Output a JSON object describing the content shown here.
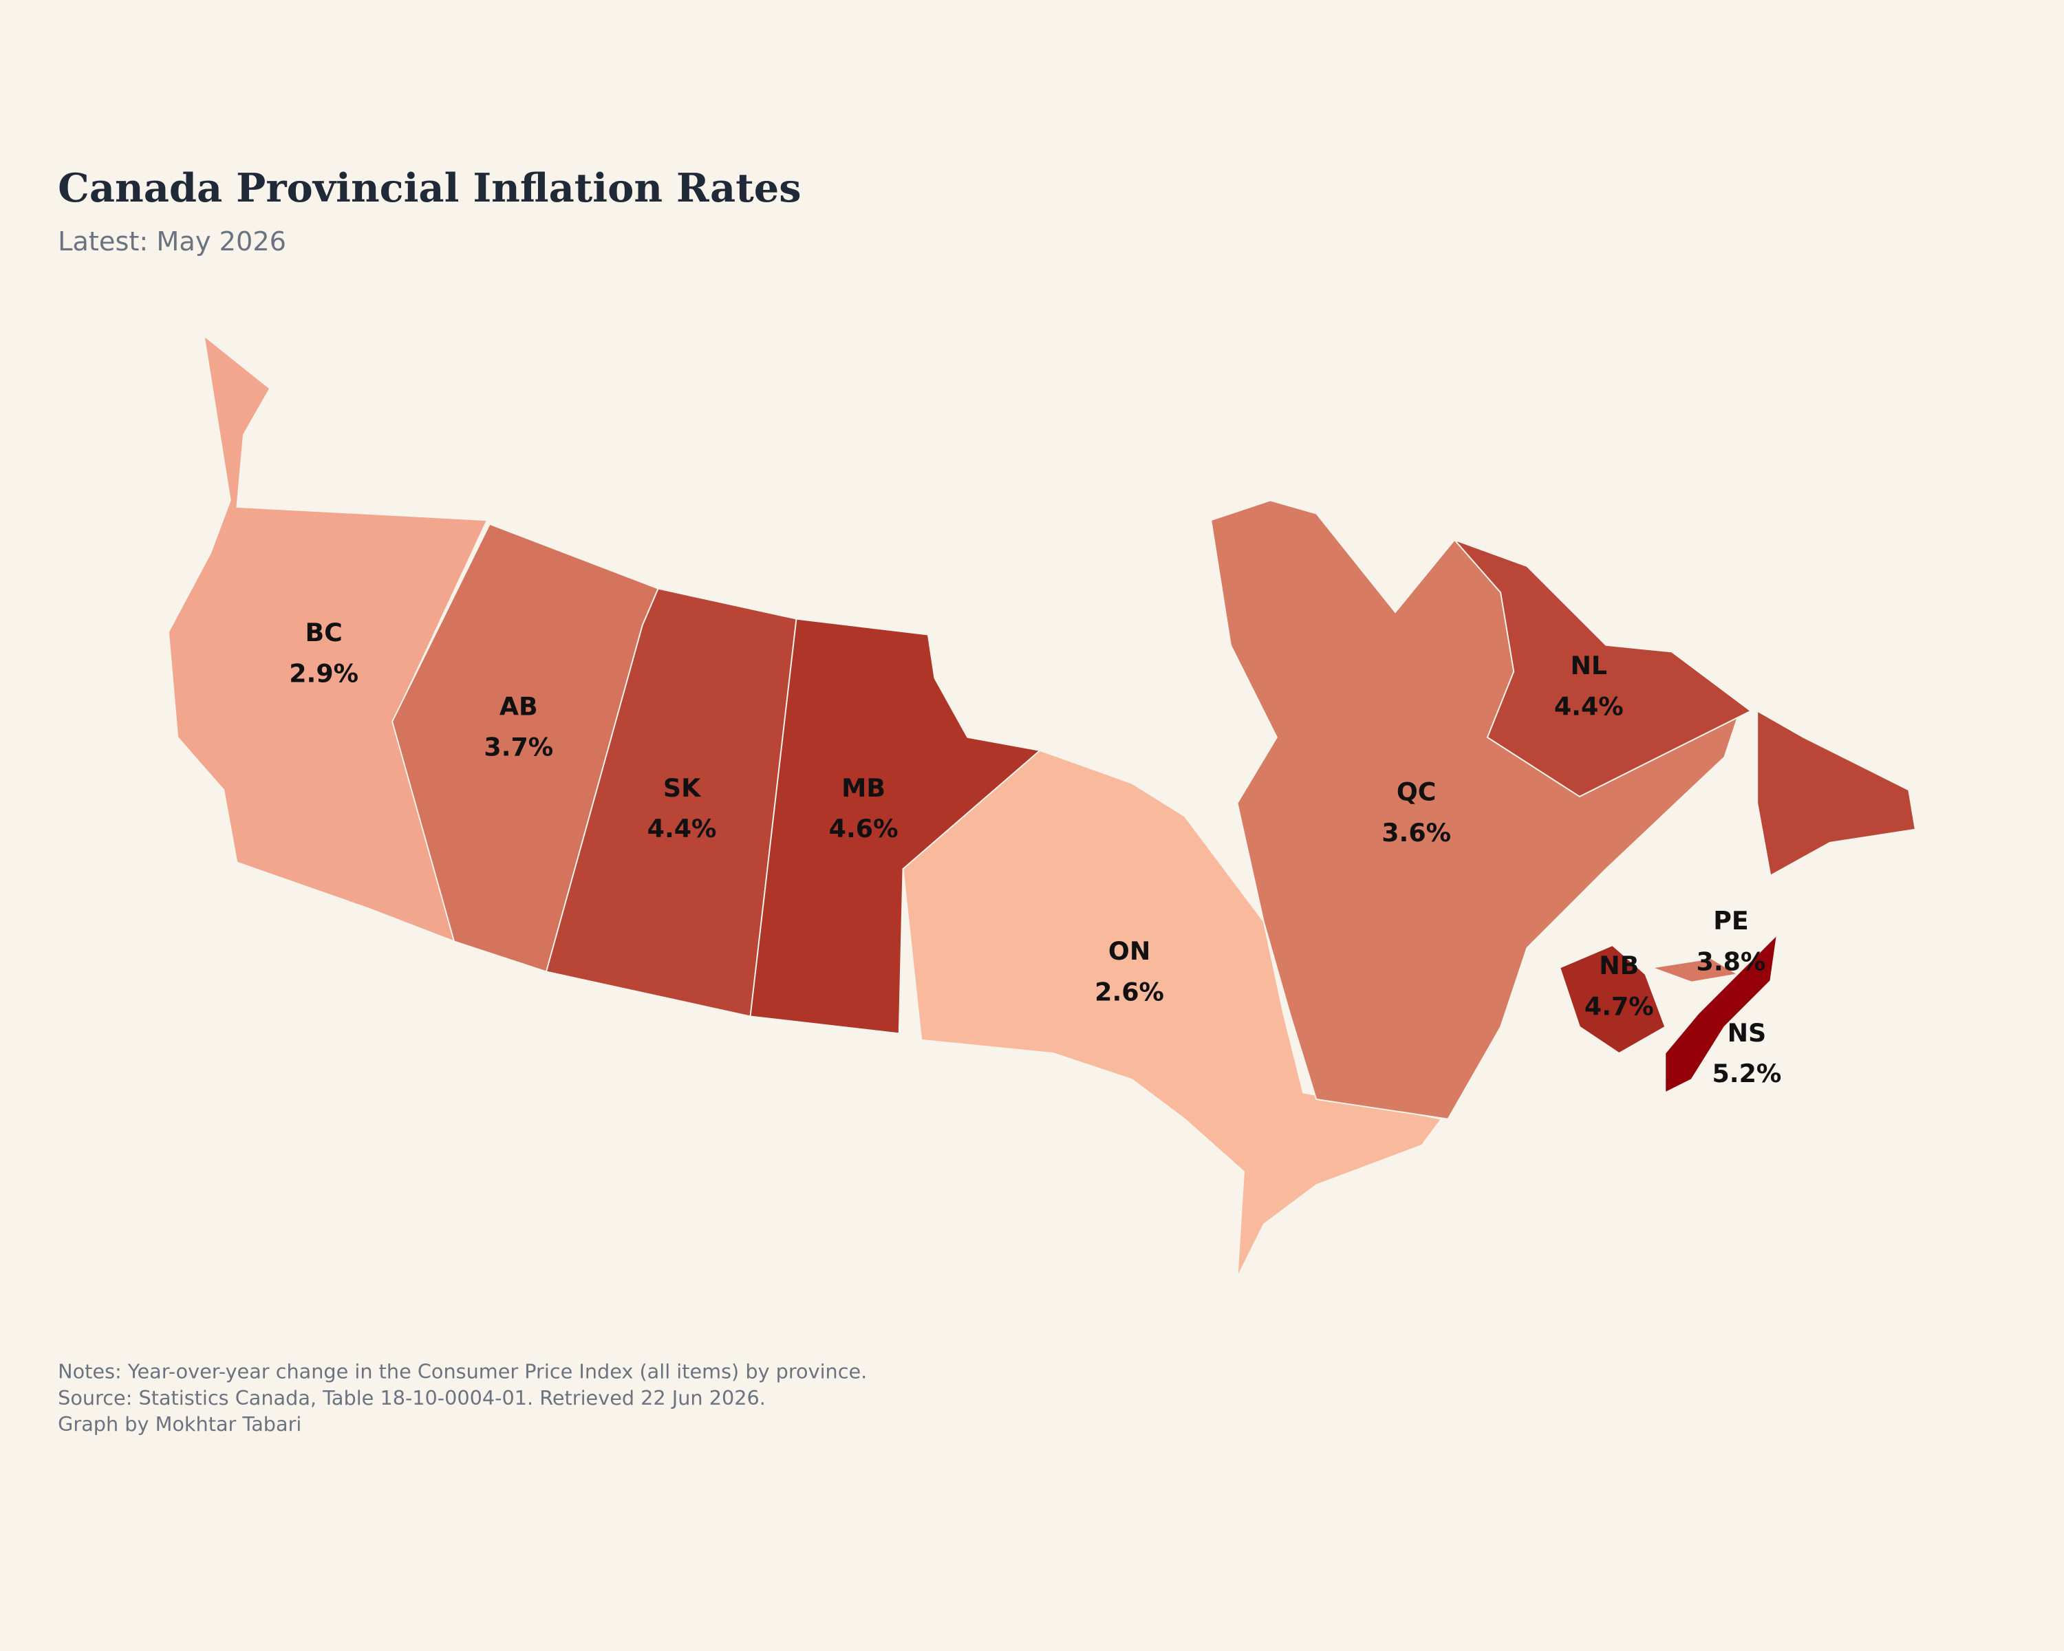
{
  "chart_data": {
    "type": "choropleth",
    "title": "Canada Provincial Inflation Rates",
    "subtitle": "Latest: May 2026",
    "categories": [
      "BC",
      "AB",
      "SK",
      "MB",
      "ON",
      "QC",
      "NL",
      "NB",
      "PE",
      "NS"
    ],
    "values": [
      2.9,
      3.7,
      4.4,
      4.6,
      2.6,
      3.6,
      4.4,
      4.7,
      3.8,
      5.2
    ],
    "value_labels": [
      "2.9%",
      "3.7%",
      "4.4%",
      "4.6%",
      "2.6%",
      "3.6%",
      "4.4%",
      "4.7%",
      "3.8%",
      "5.2%"
    ],
    "colors": [
      "#f1a68d",
      "#d4745d",
      "#b94536",
      "#ae3528",
      "#f9b99d",
      "#d87b63",
      "#b94636",
      "#a82b22",
      "#d67862",
      "#950008"
    ],
    "notes": [
      "Notes: Year-over-year change in the Consumer Price Index (all items) by province.",
      "Source: Statistics Canada, Table 18-10-0004-01. Retrieved 22 Jun 2026.",
      "Graph by Mokhtar Tabari"
    ]
  }
}
